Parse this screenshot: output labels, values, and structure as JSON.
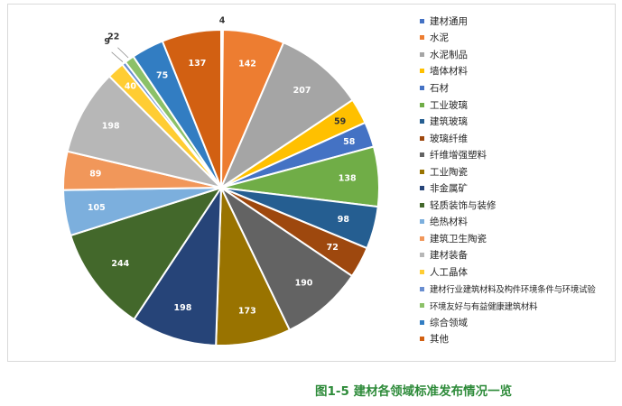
{
  "chart_data": {
    "type": "pie",
    "categories": [
      "建材通用",
      "水泥",
      "水泥制品",
      "墙体材料",
      "石材",
      "工业玻璃",
      "建筑玻璃",
      "玻璃纤维",
      "纤维增强塑料",
      "工业陶瓷",
      "非金属矿",
      "轻质装饰与装修",
      "绝热材料",
      "建筑卫生陶瓷",
      "建材装备",
      "人工晶体",
      "建材行业建筑材料及构件环境条件与环境试验",
      "环境友好与有益健康建筑材料",
      "综合领域",
      "其他"
    ],
    "values": [
      4,
      142,
      207,
      59,
      58,
      138,
      98,
      72,
      190,
      173,
      198,
      244,
      105,
      89,
      198,
      40,
      9,
      22,
      75,
      137
    ],
    "colors": [
      "#4472c4",
      "#ed7d31",
      "#a5a5a5",
      "#ffc000",
      "#4472c4",
      "#70ad47",
      "#255e91",
      "#9e480e",
      "#636363",
      "#997300",
      "#264478",
      "#43682b",
      "#7cafdd",
      "#f1975a",
      "#b7b7b7",
      "#ffcd33",
      "#698ed0",
      "#8cc168",
      "#327dc2",
      "#d26012"
    ],
    "legend_position": "right",
    "caption": "图1-5 建材各领域标准发布情况一览"
  }
}
